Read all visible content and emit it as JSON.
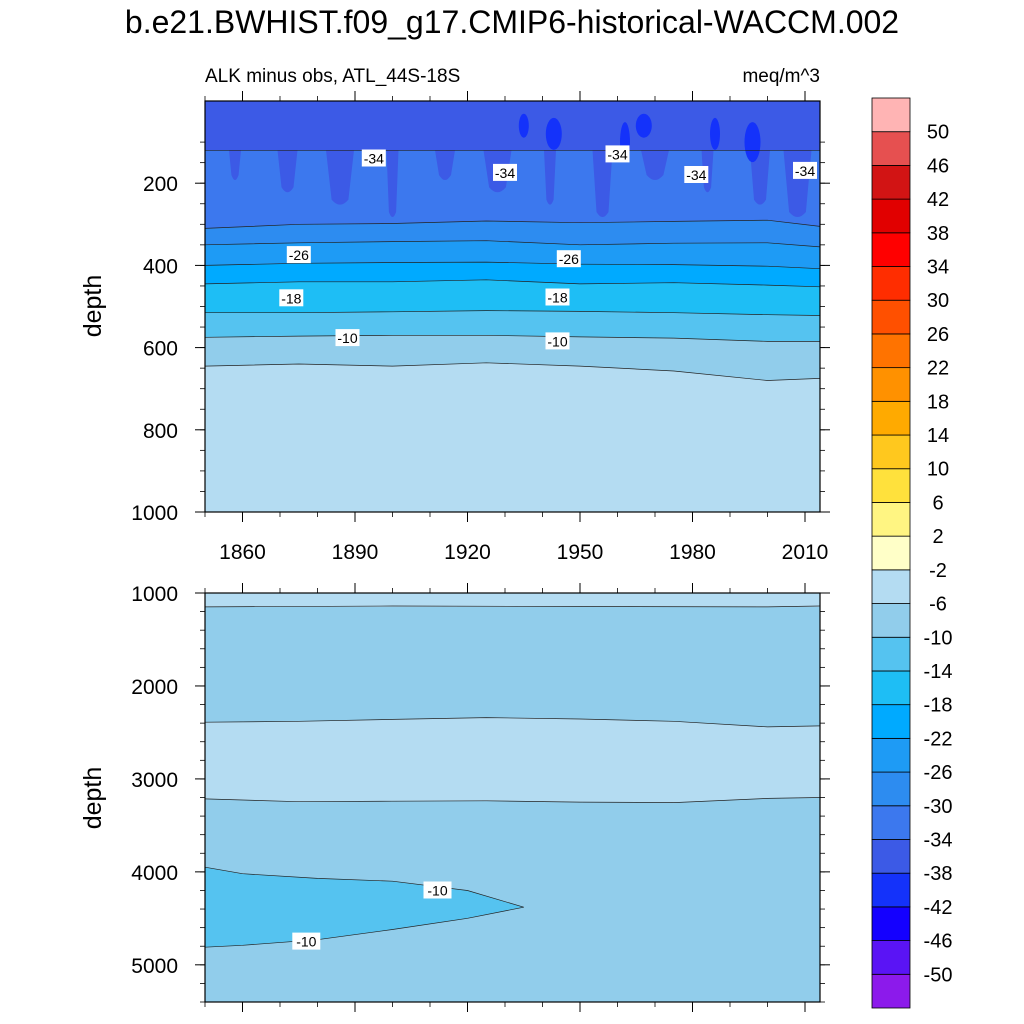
{
  "figure": {
    "title": "b.e21.BWHIST.f09_g17.CMIP6-historical-WACCM.002",
    "subtitle_left": "ALK minus obs, ATL_44S-18S",
    "subtitle_right": "meq/m^3"
  },
  "colors": {
    "levels": [
      -50,
      -46,
      -42,
      -38,
      -34,
      -30,
      -26,
      -22,
      -18,
      -14,
      -10,
      -6,
      -2,
      2,
      6,
      10,
      14,
      18,
      22,
      26,
      30,
      34,
      38,
      42,
      46,
      50
    ],
    "bins": [
      "#8c1aeb",
      "#5a14f5",
      "#1400ff",
      "#1432fa",
      "#3c5ae6",
      "#3c78ee",
      "#2d8cf0",
      "#1e9bf5",
      "#00aaff",
      "#1ebef5",
      "#55c3f0",
      "#91cdeb",
      "#b4dcf2",
      "#ffffc8",
      "#fff582",
      "#ffe13c",
      "#ffc81e",
      "#ffaa00",
      "#ff9100",
      "#ff7300",
      "#ff5000",
      "#ff2d00",
      "#ff0000",
      "#e10000",
      "#d21414",
      "#e65050",
      "#ffb4b4"
    ]
  },
  "chart_data": [
    {
      "type": "heatmap",
      "panel": "upper",
      "title": "ALK minus obs, ATL_44S-18S",
      "units": "meq/m^3",
      "ylabel": "depth",
      "xlabel": "",
      "xlim": [
        1850,
        2014
      ],
      "ylim": [
        1000,
        0
      ],
      "x_ticks": [
        1860,
        1890,
        1920,
        1950,
        1980,
        2010
      ],
      "y_ticks": [
        200,
        400,
        600,
        800,
        1000
      ],
      "y_reversed": true,
      "boundaries": [
        {
          "between": [
            -38,
            -34
          ],
          "depth": [
            120,
            120,
            120,
            120,
            120,
            120,
            120,
            120
          ]
        },
        {
          "between": [
            -34,
            -30
          ],
          "depth": [
            310,
            300,
            298,
            292,
            296,
            293,
            290,
            305
          ]
        },
        {
          "between": [
            -30,
            -26
          ],
          "depth": [
            350,
            345,
            342,
            340,
            350,
            346,
            345,
            355
          ]
        },
        {
          "between": [
            -26,
            -22
          ],
          "depth": [
            400,
            395,
            393,
            392,
            397,
            398,
            402,
            408
          ]
        },
        {
          "between": [
            -22,
            -18
          ],
          "depth": [
            445,
            440,
            440,
            435,
            445,
            442,
            448,
            452
          ]
        },
        {
          "between": [
            -18,
            -14
          ],
          "depth": [
            515,
            515,
            513,
            510,
            512,
            515,
            520,
            522
          ]
        },
        {
          "between": [
            -14,
            -10
          ],
          "depth": [
            575,
            572,
            570,
            570,
            574,
            577,
            585,
            585
          ]
        },
        {
          "between": [
            -10,
            -6
          ],
          "depth": [
            645,
            640,
            645,
            637,
            645,
            657,
            680,
            675
          ]
        }
      ],
      "boundary_years": [
        1850,
        1875,
        1900,
        1925,
        1950,
        1975,
        2000,
        2014
      ],
      "contour_labels": [
        {
          "text": "-34",
          "x": 1895,
          "y": 140
        },
        {
          "text": "-34",
          "x": 1930,
          "y": 175
        },
        {
          "text": "-34",
          "x": 1960,
          "y": 130
        },
        {
          "text": "-34",
          "x": 1981,
          "y": 180
        },
        {
          "text": "-34",
          "x": 2010,
          "y": 170
        },
        {
          "text": "-26",
          "x": 1875,
          "y": 375
        },
        {
          "text": "-26",
          "x": 1947,
          "y": 385
        },
        {
          "text": "-18",
          "x": 1873,
          "y": 480
        },
        {
          "text": "-18",
          "x": 1944,
          "y": 478
        },
        {
          "text": "-10",
          "x": 1888,
          "y": 577
        },
        {
          "text": "-10",
          "x": 1944,
          "y": 585
        }
      ]
    },
    {
      "type": "heatmap",
      "panel": "lower",
      "ylabel": "depth",
      "xlabel": "",
      "xlim": [
        1850,
        2014
      ],
      "ylim": [
        5400,
        1000
      ],
      "x_ticks": [
        1860,
        1890,
        1920,
        1950,
        1980,
        2010
      ],
      "y_ticks": [
        1000,
        2000,
        3000,
        4000,
        5000
      ],
      "y_reversed": true,
      "background_level_bin": [
        -10,
        -6
      ],
      "band": {
        "between": [
          -6,
          -2
        ],
        "top_depth": [
          2390,
          2380,
          2360,
          2340,
          2355,
          2380,
          2440,
          2430
        ],
        "bottom_depth": [
          3215,
          3245,
          3240,
          3235,
          3250,
          3255,
          3210,
          3200
        ]
      },
      "band_years": [
        1850,
        1875,
        1900,
        1925,
        1950,
        1975,
        2000,
        2014
      ],
      "tongue": {
        "between": [
          -14,
          -10
        ],
        "polygon": [
          [
            1850,
            3950
          ],
          [
            1860,
            4020
          ],
          [
            1880,
            4070
          ],
          [
            1900,
            4100
          ],
          [
            1920,
            4200
          ],
          [
            1935,
            4380
          ],
          [
            1920,
            4500
          ],
          [
            1900,
            4620
          ],
          [
            1880,
            4730
          ],
          [
            1860,
            4790
          ],
          [
            1850,
            4810
          ]
        ]
      },
      "contour_labels": [
        {
          "text": "-10",
          "x": 1912,
          "y": 4200
        },
        {
          "text": "-10",
          "x": 1877,
          "y": 4750
        }
      ]
    }
  ]
}
